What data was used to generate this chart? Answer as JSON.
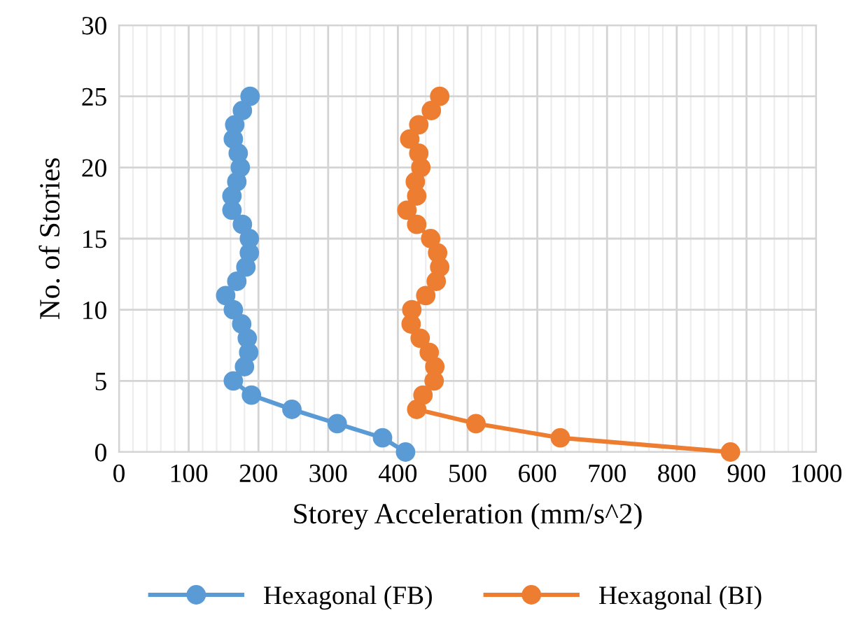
{
  "chart_data": {
    "type": "line",
    "xlabel": "Storey Acceleration (mm/s^2)",
    "ylabel": "No. of Stories",
    "xlim": [
      0,
      1000
    ],
    "xticks": [
      0,
      100,
      200,
      300,
      400,
      500,
      600,
      700,
      800,
      900,
      1000
    ],
    "ylim": [
      0,
      30
    ],
    "yticks": [
      0,
      5,
      10,
      15,
      20,
      25,
      30
    ],
    "grid": true,
    "legend": "bottom",
    "marker": "circle",
    "line_style": "solid",
    "series": [
      {
        "name": "Hexagonal (FB)",
        "color": "#5b9bd5",
        "x": [
          411,
          378,
          313,
          248,
          190,
          164,
          180,
          186,
          184,
          176,
          164,
          153,
          169,
          182,
          187,
          187,
          177,
          162,
          162,
          169,
          174,
          171,
          164,
          166,
          177,
          188
        ],
        "values": [
          0,
          1,
          2,
          3,
          4,
          5,
          6,
          7,
          8,
          9,
          10,
          11,
          12,
          13,
          14,
          15,
          16,
          17,
          18,
          19,
          20,
          21,
          22,
          23,
          24,
          25
        ]
      },
      {
        "name": "Hexagonal (BI)",
        "color": "#ed7d31",
        "x": [
          877,
          633,
          512,
          427,
          436,
          452,
          453,
          445,
          432,
          419,
          420,
          440,
          455,
          460,
          457,
          447,
          427,
          413,
          427,
          425,
          433,
          430,
          417,
          430,
          448,
          460
        ],
        "values": [
          0,
          1,
          2,
          3,
          4,
          5,
          6,
          7,
          8,
          9,
          10,
          11,
          12,
          13,
          14,
          15,
          16,
          17,
          18,
          19,
          20,
          21,
          22,
          23,
          24,
          25
        ]
      }
    ]
  }
}
